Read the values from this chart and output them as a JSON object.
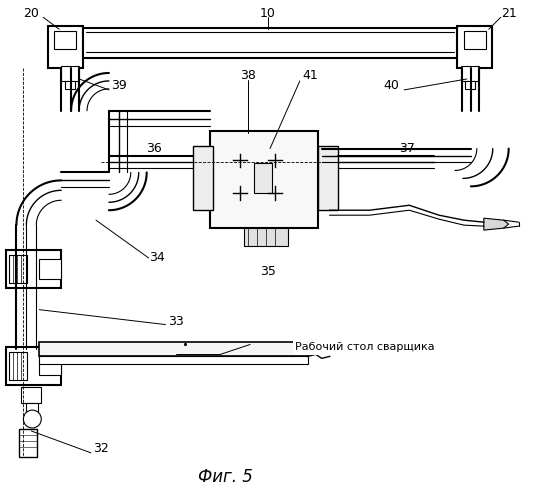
{
  "title": "Фиг. 5",
  "label_text": "Рабочий стол сварщика",
  "bg_color": "#ffffff",
  "line_color": "#000000",
  "fig_width": 5.4,
  "fig_height": 4.99,
  "dpi": 100
}
